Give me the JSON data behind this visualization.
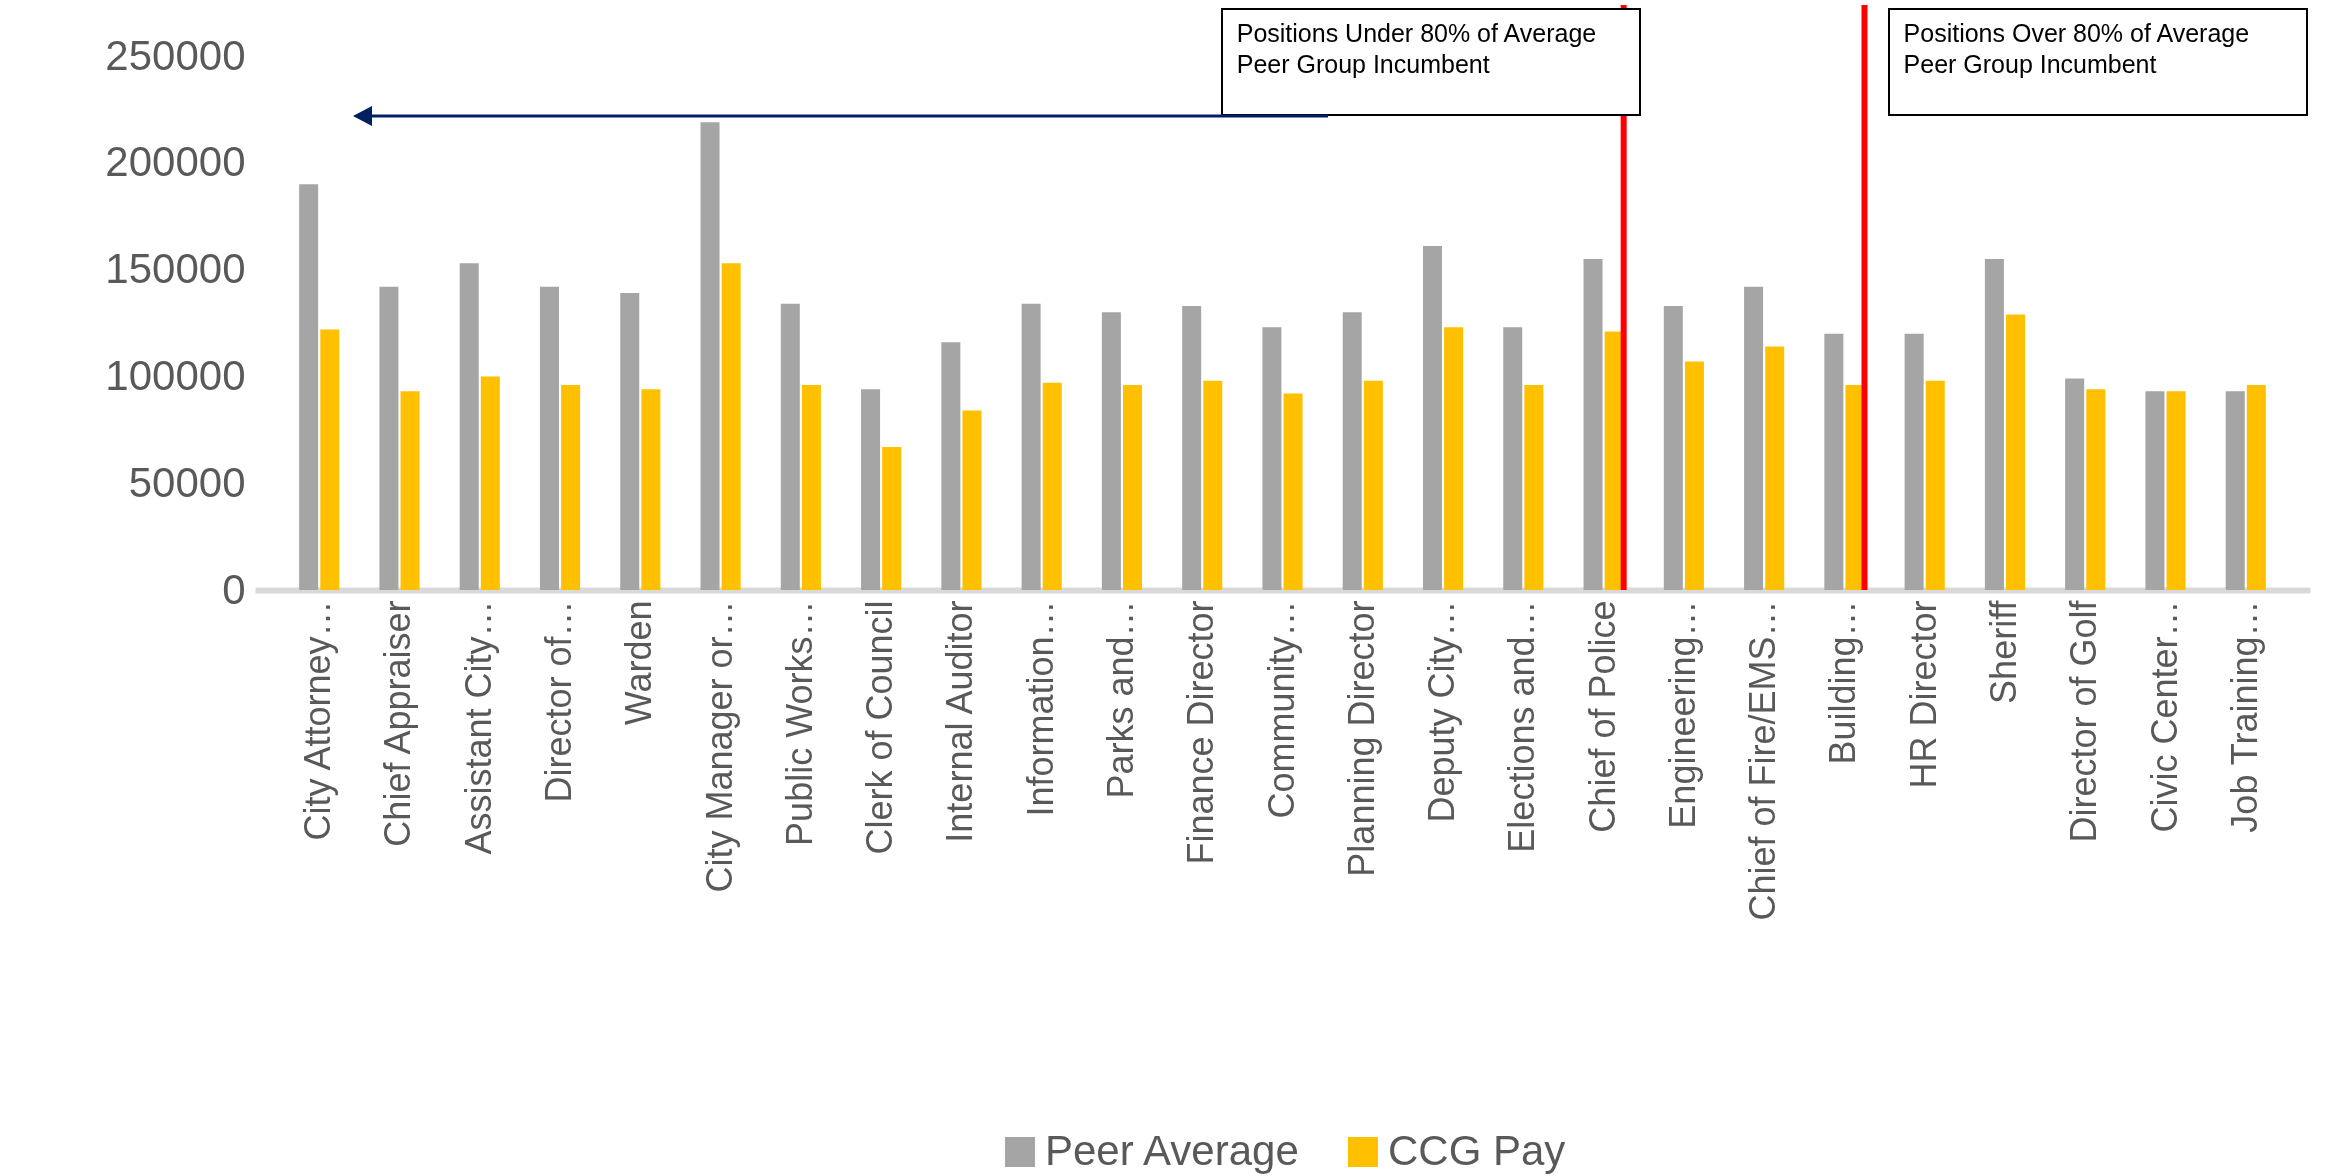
{
  "chart_data": {
    "type": "bar",
    "categories": [
      "City Attorney…",
      "Chief Appraiser",
      "Assistant City…",
      "Director of…",
      "Warden",
      "City Manager or…",
      "Public Works…",
      "Clerk of Council",
      "Internal Auditor",
      "Information…",
      "Parks and…",
      "Finance Director",
      "Community…",
      "Planning Director",
      "Deputy City…",
      "Elections and…",
      "Chief of Police",
      "Engineering…",
      "Chief of Fire/EMS…",
      "Building…",
      "HR Director",
      "Sheriff",
      "Director of Golf",
      "Civic Center…",
      "Job Training…"
    ],
    "series": [
      {
        "name": "Peer Average",
        "color": "#a5a5a5",
        "values": [
          190000,
          142000,
          153000,
          142000,
          139000,
          219000,
          134000,
          94000,
          116000,
          134000,
          130000,
          133000,
          123000,
          130000,
          161000,
          123000,
          155000,
          133000,
          142000,
          120000,
          120000,
          155000,
          99000,
          93000,
          93000
        ]
      },
      {
        "name": "CCG Pay",
        "color": "#ffc000",
        "values": [
          122000,
          93000,
          100000,
          96000,
          94000,
          153000,
          96000,
          67000,
          84000,
          97000,
          96000,
          98000,
          92000,
          98000,
          123000,
          96000,
          121000,
          107000,
          114000,
          96000,
          98000,
          129000,
          94000,
          93000,
          96000
        ]
      }
    ],
    "ylim": [
      0,
      250000
    ],
    "yticks": [
      0,
      50000,
      100000,
      150000,
      200000,
      250000
    ],
    "grid": false,
    "legend": "bottom",
    "ref_lines": [
      {
        "axis": "x",
        "value": "Chief of Police",
        "label": "Positions Under 80% of Average Peer Group Incumbent",
        "color": "#ff0000"
      },
      {
        "axis": "x",
        "value": "Building…",
        "label": "Positions Over 80% of Average Peer Group Incumbent",
        "color": "#ff0000"
      }
    ]
  }
}
